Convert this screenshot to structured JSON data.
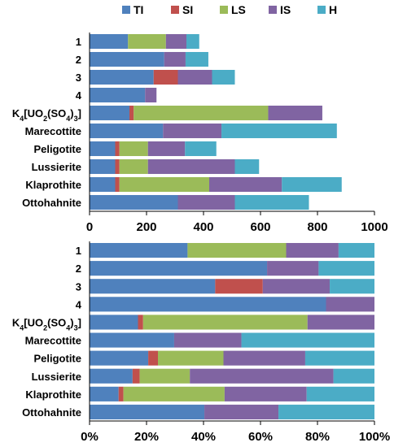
{
  "colors": {
    "TI": "#4f81bd",
    "SI": "#c0504d",
    "LS": "#9bbb59",
    "IS": "#8064a2",
    "H": "#4bacc6",
    "axis": "#000000",
    "separator": "#ffffff"
  },
  "chart_data": [
    {
      "type": "bar",
      "orientation": "horizontal",
      "stacked": true,
      "legend": {
        "position": "top",
        "entries": [
          "TI",
          "SI",
          "LS",
          "IS",
          "H"
        ]
      },
      "categories": [
        "1",
        "2",
        "3",
        "4",
        "K4[UO2(SO4)3]",
        "Marecottite",
        "Peligotite",
        "Lussierite",
        "Klaprothite",
        "Ottohahnite"
      ],
      "category_labels": [
        [
          {
            "t": "1"
          }
        ],
        [
          {
            "t": "2"
          }
        ],
        [
          {
            "t": "3"
          }
        ],
        [
          {
            "t": "4"
          }
        ],
        [
          {
            "t": "K"
          },
          {
            "t": "4",
            "sub": true
          },
          {
            "t": "[UO"
          },
          {
            "t": "2",
            "sub": true
          },
          {
            "t": "(SO"
          },
          {
            "t": "4",
            "sub": true
          },
          {
            "t": ")"
          },
          {
            "t": "3",
            "sub": true
          },
          {
            "t": "]"
          }
        ],
        [
          {
            "t": "Marecottite"
          }
        ],
        [
          {
            "t": "Peligotite"
          }
        ],
        [
          {
            "t": "Lussierite"
          }
        ],
        [
          {
            "t": "Klaprothite"
          }
        ],
        [
          {
            "t": "Ottohahnite"
          }
        ]
      ],
      "series": [
        {
          "name": "TI",
          "values": [
            135,
            262,
            225,
            195,
            140,
            258,
            90,
            90,
            90,
            310
          ]
        },
        {
          "name": "SI",
          "values": [
            0,
            0,
            85,
            0,
            15,
            0,
            15,
            15,
            15,
            0
          ]
        },
        {
          "name": "LS",
          "values": [
            133,
            0,
            0,
            0,
            472,
            0,
            100,
            100,
            315,
            0
          ]
        },
        {
          "name": "IS",
          "values": [
            72,
            75,
            120,
            40,
            190,
            205,
            130,
            305,
            255,
            200
          ]
        },
        {
          "name": "H",
          "values": [
            45,
            80,
            80,
            0,
            0,
            405,
            110,
            85,
            210,
            260
          ]
        }
      ],
      "xlim": [
        0,
        1000
      ],
      "xticks": [
        "0",
        "200",
        "400",
        "600",
        "800",
        "1000"
      ],
      "xlabel": "",
      "ylabel": "",
      "grid": false
    },
    {
      "type": "bar",
      "orientation": "horizontal",
      "stacked": true,
      "percent": true,
      "categories": [
        "1",
        "2",
        "3",
        "4",
        "K4[UO2(SO4)3]",
        "Marecottite",
        "Peligotite",
        "Lussierite",
        "Klaprothite",
        "Ottohahnite"
      ],
      "series": [
        {
          "name": "TI",
          "values": [
            34.4,
            62.3,
            44.1,
            83.0,
            17.0,
            29.7,
            20.6,
            15.1,
            10.2,
            40.3
          ]
        },
        {
          "name": "SI",
          "values": [
            0,
            0,
            16.7,
            0,
            1.8,
            0,
            3.4,
            2.5,
            1.7,
            0
          ]
        },
        {
          "name": "LS",
          "values": [
            34.6,
            0,
            0,
            0,
            57.7,
            0,
            23.0,
            17.6,
            35.5,
            0
          ]
        },
        {
          "name": "IS",
          "values": [
            18.4,
            18.1,
            23.5,
            17.0,
            23.5,
            23.6,
            28.7,
            50.4,
            28.8,
            26.0
          ]
        },
        {
          "name": "H",
          "values": [
            12.6,
            19.6,
            15.7,
            0,
            0,
            46.7,
            24.3,
            14.4,
            23.8,
            33.7
          ]
        }
      ],
      "xlim": [
        0,
        100
      ],
      "xticks": [
        "0%",
        "20%",
        "40%",
        "60%",
        "80%",
        "100%"
      ],
      "xlabel": "",
      "ylabel": "",
      "grid": false
    }
  ]
}
